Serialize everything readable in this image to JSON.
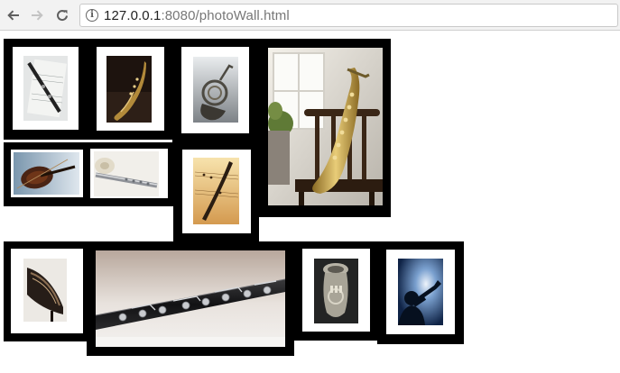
{
  "browser": {
    "url_host": "127.0.0.1",
    "url_rest": ":8080/photoWall.html",
    "icons": {
      "back": "arrow-left-icon",
      "forward": "arrow-right-icon",
      "reload": "reload-icon",
      "site_info": "info-icon"
    }
  },
  "photos": [
    {
      "name": "clarinet-on-sheet-music-photo"
    },
    {
      "name": "saxophone-on-dark-photo"
    },
    {
      "name": "french-horn-photo"
    },
    {
      "name": "saxophone-on-chair-photo"
    },
    {
      "name": "violin-photo"
    },
    {
      "name": "flute-with-rose-photo"
    },
    {
      "name": "quill-on-sheet-music-photo"
    },
    {
      "name": "grand-piano-photo"
    },
    {
      "name": "clarinet-closeup-photo"
    },
    {
      "name": "tuba-photo"
    },
    {
      "name": "trumpet-player-silhouette-photo"
    }
  ]
}
